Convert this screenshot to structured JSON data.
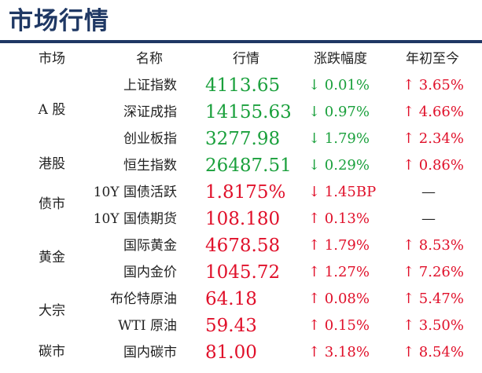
{
  "title": "市场行情",
  "headers": {
    "market": "市场",
    "name": "名称",
    "price": "行情",
    "change": "涨跌幅度",
    "ytd": "年初至今"
  },
  "groups": [
    "A 股",
    "港股",
    "债市",
    "黄金",
    "大宗",
    "碳市"
  ],
  "rows": [
    {
      "name": "上证指数",
      "price": "4113.65",
      "change": "↓ 0.01%",
      "ytd": "↑ 3.65%",
      "price_color": "green",
      "change_color": "green",
      "ytd_color": "red"
    },
    {
      "name": "深证成指",
      "price": "14155.63",
      "change": "↓ 0.97%",
      "ytd": "↑ 4.66%",
      "price_color": "green",
      "change_color": "green",
      "ytd_color": "red"
    },
    {
      "name": "创业板指",
      "price": "3277.98",
      "change": "↓ 1.79%",
      "ytd": "↑ 2.34%",
      "price_color": "green",
      "change_color": "green",
      "ytd_color": "red"
    },
    {
      "name": "恒生指数",
      "price": "26487.51",
      "change": "↓ 0.29%",
      "ytd": "↑ 0.86%",
      "price_color": "green",
      "change_color": "green",
      "ytd_color": "red"
    },
    {
      "name": "10Y 国债活跃",
      "price": "1.8175%",
      "change": "↓ 1.45BP",
      "ytd": "—",
      "price_color": "red",
      "change_color": "red",
      "ytd_color": "dash"
    },
    {
      "name": "10Y 国债期货",
      "price": "108.180",
      "change": "↑ 0.13%",
      "ytd": "—",
      "price_color": "red",
      "change_color": "red",
      "ytd_color": "dash"
    },
    {
      "name": "国际黄金",
      "price": "4678.58",
      "change": "↑ 1.79%",
      "ytd": "↑ 8.53%",
      "price_color": "red",
      "change_color": "red",
      "ytd_color": "red"
    },
    {
      "name": "国内金价",
      "price": "1045.72",
      "change": "↑ 1.27%",
      "ytd": "↑ 7.26%",
      "price_color": "red",
      "change_color": "red",
      "ytd_color": "red"
    },
    {
      "name": "布伦特原油",
      "price": "64.18",
      "change": "↑ 0.08%",
      "ytd": "↑ 5.47%",
      "price_color": "red",
      "change_color": "red",
      "ytd_color": "red"
    },
    {
      "name": "WTI 原油",
      "price": "59.43",
      "change": "↑ 0.15%",
      "ytd": "↑ 3.50%",
      "price_color": "red",
      "change_color": "red",
      "ytd_color": "red"
    },
    {
      "name": "国内碳市",
      "price": "81.00",
      "change": "↑ 3.18%",
      "ytd": "↑ 8.54%",
      "price_color": "red",
      "change_color": "red",
      "ytd_color": "red"
    }
  ],
  "colors": {
    "title": "#1f3864",
    "up": "#e0102a",
    "down": "#1aa03c"
  }
}
